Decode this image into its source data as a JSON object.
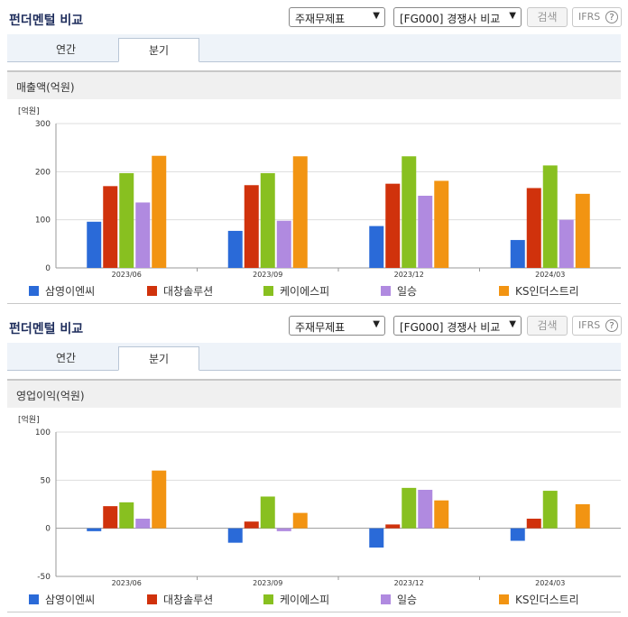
{
  "sections": [
    {
      "title": "펀더멘털 비교",
      "select1": "주재무제표",
      "select2": "[FG000] 경쟁사 비교",
      "search_label": "검색",
      "ifrs_label": "IFRS",
      "help_glyph": "?",
      "tabs": [
        "연간",
        "분기"
      ],
      "active_tab": "분기",
      "subtitle": "매출액(억원)"
    },
    {
      "title": "펀더멘털 비교",
      "select1": "주재무제표",
      "select2": "[FG000] 경쟁사 비교",
      "search_label": "검색",
      "ifrs_label": "IFRS",
      "help_glyph": "?",
      "tabs": [
        "연간",
        "분기"
      ],
      "active_tab": "분기",
      "subtitle": "영업이익(억원)"
    }
  ],
  "chart_data": [
    {
      "type": "bar",
      "title": "매출액(억원)",
      "unit_label": "[억원]",
      "categories": [
        "2023/06",
        "2023/09",
        "2023/12",
        "2024/03"
      ],
      "ylim": [
        0,
        300
      ],
      "yticks": [
        0,
        100,
        200,
        300
      ],
      "grid": true,
      "legend_position": "bottom",
      "series": [
        {
          "name": "삼영이엔씨",
          "color": "#2a6ad8",
          "values": [
            96,
            77,
            87,
            58
          ]
        },
        {
          "name": "대창솔루션",
          "color": "#d0320c",
          "values": [
            170,
            172,
            175,
            166
          ]
        },
        {
          "name": "케이에스피",
          "color": "#88c020",
          "values": [
            197,
            197,
            232,
            213
          ]
        },
        {
          "name": "일승",
          "color": "#b08ae0",
          "values": [
            136,
            98,
            150,
            100
          ]
        },
        {
          "name": "KS인더스트리",
          "color": "#f29412",
          "values": [
            233,
            232,
            181,
            154
          ]
        }
      ]
    },
    {
      "type": "bar",
      "title": "영업이익(억원)",
      "unit_label": "[억원]",
      "categories": [
        "2023/06",
        "2023/09",
        "2023/12",
        "2024/03"
      ],
      "ylim": [
        -50,
        100
      ],
      "yticks": [
        -50,
        0,
        50,
        100
      ],
      "grid": true,
      "legend_position": "bottom",
      "series": [
        {
          "name": "삼영이엔씨",
          "color": "#2a6ad8",
          "values": [
            -3,
            -15,
            -20,
            -13
          ]
        },
        {
          "name": "대창솔루션",
          "color": "#d0320c",
          "values": [
            23,
            7,
            4,
            10
          ]
        },
        {
          "name": "케이에스피",
          "color": "#88c020",
          "values": [
            27,
            33,
            42,
            39
          ]
        },
        {
          "name": "일승",
          "color": "#b08ae0",
          "values": [
            10,
            -3,
            40,
            null
          ]
        },
        {
          "name": "KS인더스트리",
          "color": "#f29412",
          "values": [
            60,
            16,
            29,
            25
          ]
        }
      ]
    }
  ]
}
